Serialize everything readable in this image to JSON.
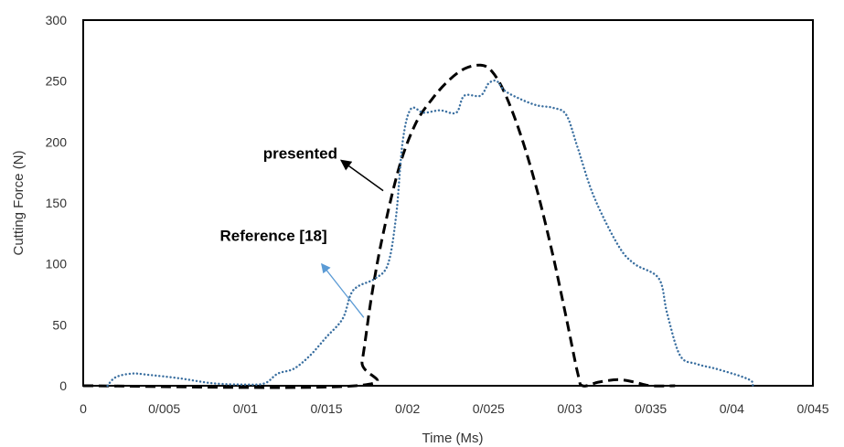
{
  "chart_data": {
    "type": "line",
    "xlabel": "Time (Ms)",
    "ylabel": "Cutting Force (N)",
    "xlim": [
      0,
      0.045
    ],
    "ylim": [
      0,
      300
    ],
    "x_ticks": [
      {
        "value": 0,
        "label": "0"
      },
      {
        "value": 0.005,
        "label": "0/005"
      },
      {
        "value": 0.01,
        "label": "0/01"
      },
      {
        "value": 0.015,
        "label": "0/015"
      },
      {
        "value": 0.02,
        "label": "0/02"
      },
      {
        "value": 0.025,
        "label": "0/025"
      },
      {
        "value": 0.03,
        "label": "0/03"
      },
      {
        "value": 0.035,
        "label": "0/035"
      },
      {
        "value": 0.04,
        "label": "0/04"
      },
      {
        "value": 0.045,
        "label": "0/045"
      }
    ],
    "y_ticks": [
      {
        "value": 0,
        "label": "0"
      },
      {
        "value": 50,
        "label": "50"
      },
      {
        "value": 100,
        "label": "100"
      },
      {
        "value": 150,
        "label": "150"
      },
      {
        "value": 200,
        "label": "200"
      },
      {
        "value": 250,
        "label": "250"
      },
      {
        "value": 300,
        "label": "300"
      }
    ],
    "grid": false,
    "series": [
      {
        "name": "presented",
        "color": "#000000",
        "style": "dashed",
        "points": [
          [
            0,
            0
          ],
          [
            0.0168,
            0
          ],
          [
            0.0172,
            20
          ],
          [
            0.0178,
            75
          ],
          [
            0.0185,
            125
          ],
          [
            0.0195,
            180
          ],
          [
            0.0205,
            215
          ],
          [
            0.0215,
            235
          ],
          [
            0.0225,
            250
          ],
          [
            0.0235,
            260
          ],
          [
            0.0245,
            263
          ],
          [
            0.0252,
            258
          ],
          [
            0.026,
            240
          ],
          [
            0.027,
            205
          ],
          [
            0.028,
            160
          ],
          [
            0.029,
            105
          ],
          [
            0.0298,
            55
          ],
          [
            0.0305,
            10
          ],
          [
            0.0308,
            0
          ],
          [
            0.0318,
            3
          ],
          [
            0.033,
            5
          ],
          [
            0.034,
            3
          ],
          [
            0.035,
            0
          ],
          [
            0.0365,
            0
          ]
        ]
      },
      {
        "name": "Reference [18]",
        "color": "#3a6fa0",
        "style": "dotted",
        "points": [
          [
            0.0015,
            0
          ],
          [
            0.002,
            7
          ],
          [
            0.003,
            10
          ],
          [
            0.004,
            9
          ],
          [
            0.006,
            6
          ],
          [
            0.008,
            2
          ],
          [
            0.01,
            1
          ],
          [
            0.0112,
            2
          ],
          [
            0.012,
            10
          ],
          [
            0.013,
            14
          ],
          [
            0.014,
            25
          ],
          [
            0.015,
            40
          ],
          [
            0.016,
            55
          ],
          [
            0.0165,
            75
          ],
          [
            0.017,
            82
          ],
          [
            0.018,
            88
          ],
          [
            0.0188,
            100
          ],
          [
            0.0193,
            140
          ],
          [
            0.0197,
            200
          ],
          [
            0.0202,
            227
          ],
          [
            0.021,
            224
          ],
          [
            0.022,
            226
          ],
          [
            0.023,
            224
          ],
          [
            0.0235,
            238
          ],
          [
            0.0245,
            238
          ],
          [
            0.025,
            248
          ],
          [
            0.0255,
            250
          ],
          [
            0.026,
            242
          ],
          [
            0.027,
            235
          ],
          [
            0.028,
            230
          ],
          [
            0.029,
            228
          ],
          [
            0.0298,
            222
          ],
          [
            0.0305,
            195
          ],
          [
            0.0315,
            155
          ],
          [
            0.033,
            115
          ],
          [
            0.034,
            100
          ],
          [
            0.0355,
            88
          ],
          [
            0.036,
            60
          ],
          [
            0.0368,
            25
          ],
          [
            0.0378,
            18
          ],
          [
            0.039,
            14
          ],
          [
            0.0405,
            8
          ],
          [
            0.0412,
            4
          ],
          [
            0.0413,
            0
          ]
        ]
      }
    ],
    "annotations": [
      {
        "text": "presented",
        "arrow_from": [
          0.0159,
          185
        ],
        "arrow_to": [
          0.0185,
          160
        ],
        "color": "#000000"
      },
      {
        "text": "Reference [18]",
        "arrow_from": [
          0.0147,
          100
        ],
        "arrow_to": [
          0.0173,
          56
        ],
        "color": "#5b9bd5"
      }
    ]
  }
}
